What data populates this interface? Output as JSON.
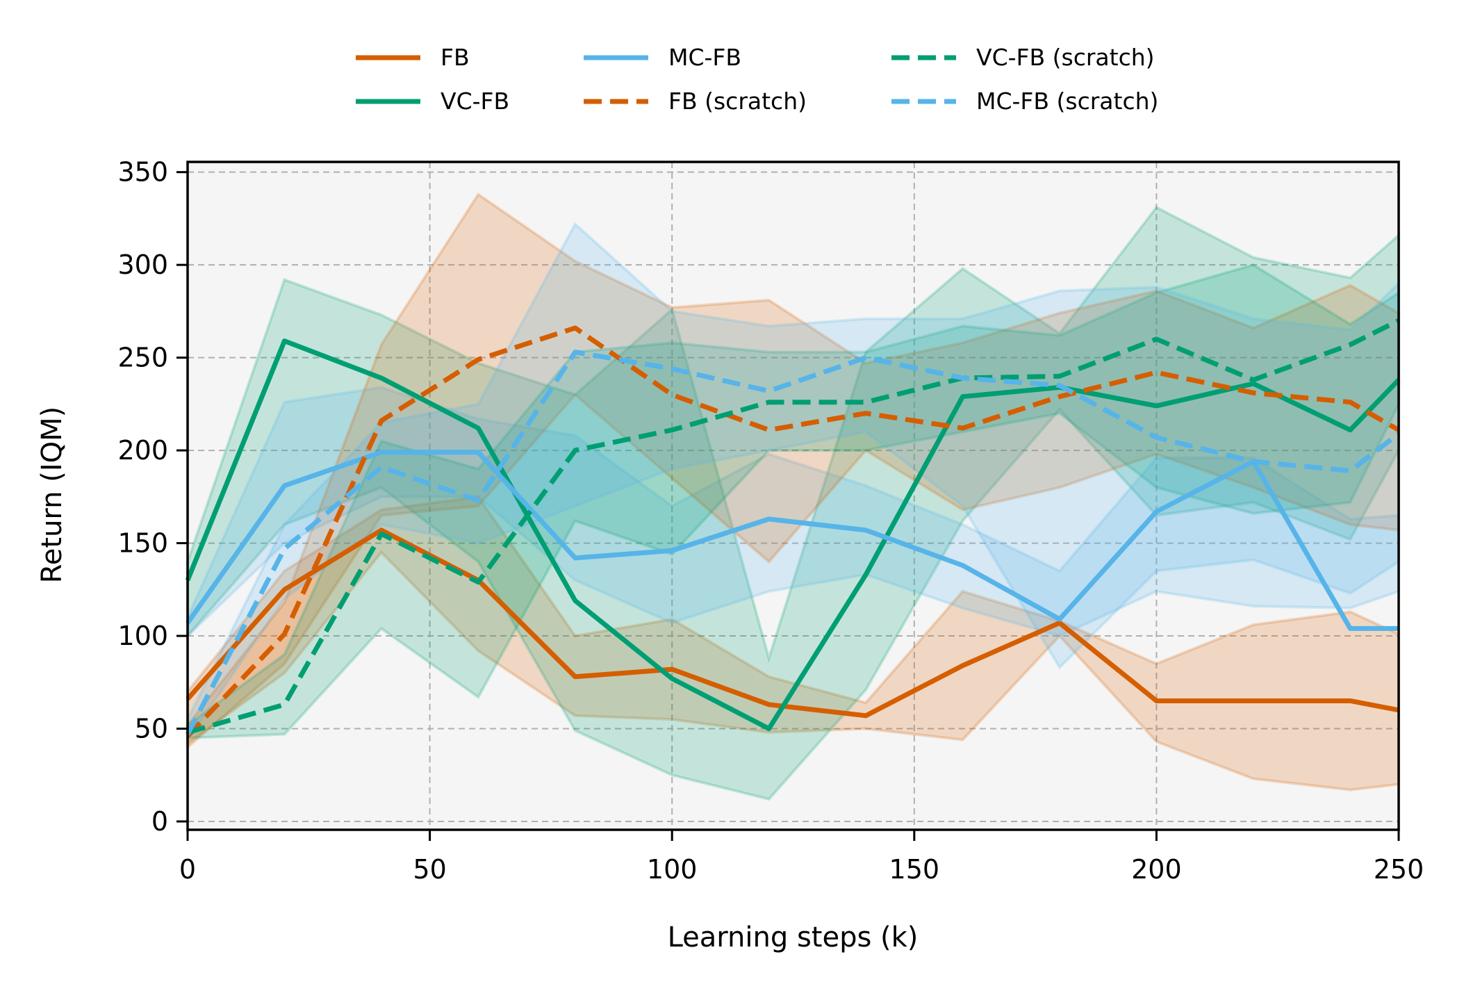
{
  "chart_data": {
    "type": "line",
    "title": "",
    "xlabel": "Learning steps (k)",
    "ylabel": "Return (IQM)",
    "xlim": [
      0,
      250
    ],
    "ylim": [
      -4.5,
      355.5
    ],
    "xticks": [
      0,
      50,
      100,
      150,
      200,
      250
    ],
    "yticks": [
      0,
      50,
      100,
      150,
      200,
      250,
      300,
      350
    ],
    "xtick_labels": [
      "0",
      "50",
      "100",
      "150",
      "200",
      "250"
    ],
    "ytick_labels": [
      "0",
      "50",
      "100",
      "150",
      "200",
      "250",
      "300",
      "350"
    ],
    "grid": true,
    "legend_placement": "top-center, above plot, 3 columns",
    "background_color": "#f5f5f5",
    "x": [
      0,
      20,
      40,
      60,
      80,
      100,
      120,
      140,
      160,
      180,
      200,
      220,
      240,
      250
    ],
    "series": [
      {
        "name": "FB",
        "color": "#D55E00",
        "dashed": false,
        "values": [
          66,
          125,
          157,
          130,
          78,
          82,
          63,
          57,
          84,
          107,
          65,
          65,
          65,
          60
        ],
        "lower": [
          42,
          80,
          145,
          92,
          57,
          55,
          48,
          50,
          44,
          100,
          43,
          23,
          17,
          20
        ],
        "upper": [
          70,
          135,
          168,
          175,
          100,
          109,
          78,
          64,
          124,
          108,
          85,
          106,
          113,
          101
        ]
      },
      {
        "name": "VC-FB",
        "color": "#009E73",
        "dashed": false,
        "values": [
          130,
          259,
          239,
          212,
          119,
          77,
          50,
          133,
          229,
          234,
          224,
          236,
          211,
          238
        ],
        "lower": [
          100,
          160,
          180,
          140,
          49,
          25,
          12,
          71,
          162,
          222,
          165,
          172,
          152,
          200
        ],
        "upper": [
          140,
          292,
          273,
          247,
          230,
          276,
          88,
          253,
          298,
          263,
          331,
          304,
          293,
          316
        ]
      },
      {
        "name": "MC-FB",
        "color": "#56B4E9",
        "dashed": false,
        "values": [
          107,
          181,
          199,
          199,
          142,
          146,
          163,
          157,
          138,
          109,
          167,
          194,
          104,
          104
        ],
        "lower": [
          100,
          150,
          175,
          175,
          130,
          107,
          124,
          133,
          115,
          100,
          124,
          116,
          115,
          124
        ],
        "upper": [
          110,
          226,
          234,
          217,
          208,
          170,
          198,
          181,
          160,
          135,
          196,
          196,
          163,
          165
        ]
      },
      {
        "name": "FB (scratch)",
        "color": "#D55E00",
        "dashed": true,
        "values": [
          46,
          101,
          216,
          249,
          266,
          230,
          211,
          220,
          212,
          229,
          242,
          231,
          226,
          211
        ],
        "lower": [
          40,
          85,
          165,
          170,
          230,
          185,
          140,
          200,
          168,
          180,
          198,
          180,
          160,
          157
        ],
        "upper": [
          52,
          118,
          257,
          338,
          302,
          277,
          281,
          247,
          258,
          274,
          286,
          266,
          289,
          274
        ]
      },
      {
        "name": "VC-FB (scratch)",
        "color": "#009E73",
        "dashed": true,
        "values": [
          48,
          63,
          155,
          129,
          200,
          211,
          226,
          226,
          239,
          240,
          260,
          238,
          257,
          270
        ],
        "lower": [
          45,
          47,
          104,
          67,
          162,
          144,
          200,
          200,
          210,
          220,
          180,
          166,
          172,
          225
        ],
        "upper": [
          52,
          90,
          205,
          190,
          253,
          258,
          253,
          253,
          267,
          262,
          285,
          300,
          268,
          285
        ]
      },
      {
        "name": "MC-FB (scratch)",
        "color": "#56B4E9",
        "dashed": true,
        "values": [
          47,
          147,
          191,
          173,
          253,
          244,
          232,
          250,
          239,
          235,
          207,
          194,
          189,
          209
        ],
        "lower": [
          44,
          120,
          160,
          150,
          170,
          190,
          200,
          210,
          170,
          83,
          135,
          141,
          123,
          140
        ],
        "upper": [
          55,
          160,
          215,
          225,
          322,
          275,
          267,
          271,
          271,
          286,
          288,
          271,
          265,
          290
        ]
      }
    ],
    "legend": [
      "FB",
      "VC-FB",
      "MC-FB",
      "FB (scratch)",
      "VC-FB (scratch)",
      "MC-FB (scratch)"
    ]
  }
}
